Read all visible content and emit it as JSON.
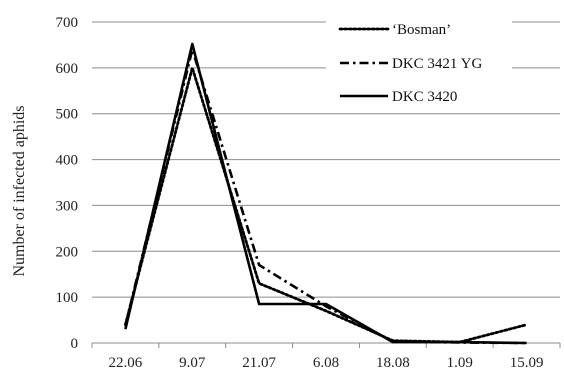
{
  "chart_data": {
    "type": "line",
    "title": "",
    "xlabel": "",
    "ylabel": "Number of infected aphids",
    "ylim": [
      0,
      700
    ],
    "yticks": [
      0,
      100,
      200,
      300,
      400,
      500,
      600,
      700
    ],
    "grid": true,
    "legend_position": "top-right",
    "categories": [
      "22.06",
      "9.07",
      "21.07",
      "6.08",
      "18.08",
      "1.09",
      "15.09"
    ],
    "series": [
      {
        "name": "‘Bosman’",
        "style": "dotted",
        "color": "#000000",
        "values": [
          40,
          600,
          130,
          70,
          5,
          2,
          40
        ]
      },
      {
        "name": "DKC 3421 YG",
        "style": "dashdot",
        "color": "#000000",
        "values": [
          38,
          640,
          170,
          80,
          3,
          1,
          0
        ]
      },
      {
        "name": "DKC 3420",
        "style": "solid",
        "color": "#000000",
        "values": [
          30,
          652,
          85,
          85,
          2,
          2,
          0
        ]
      }
    ]
  }
}
